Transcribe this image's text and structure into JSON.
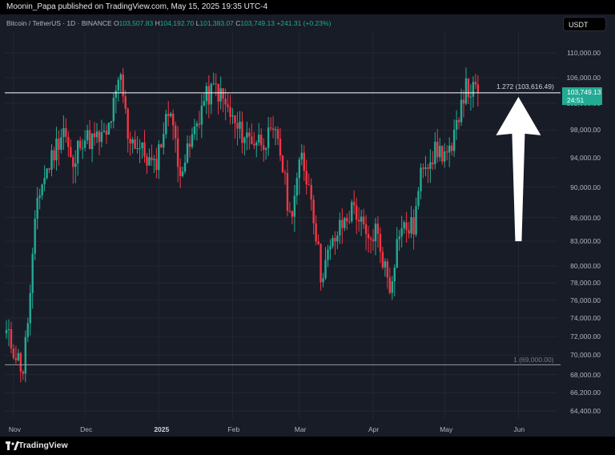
{
  "publisher_line": "Moonin_Papa published on TradingView.com, May 15, 2025 19:35 UTC-4",
  "legend": {
    "symbol": "Bitcoin / TetherUS · 1D · BINANCE",
    "o_label": "O",
    "o": "103,507.83",
    "h_label": "H",
    "h": "104,192.70",
    "l_label": "L",
    "l": "101,383.07",
    "c_label": "C",
    "c": "103,749.13",
    "change": "+241.31 (+0.23%)"
  },
  "currency_button": "USDT",
  "price_tag": {
    "price": "103,749.13",
    "countdown": "24:51"
  },
  "fib_levels": {
    "top_label": "1.272 (103,616.49)",
    "top_value": 103616.49,
    "bottom_label": "1 (69,000.00)",
    "bottom_value": 69000
  },
  "footer_brand": "TradingView",
  "colors": {
    "up": "#22ab94",
    "down": "#f23645",
    "background": "#181c27",
    "grid": "#232734",
    "arrow": "#ffffff"
  },
  "chart_data": {
    "type": "candlestick",
    "symbol": "Bitcoin / TetherUS",
    "timeframe": "1D",
    "exchange": "BINANCE",
    "y_scale": "log",
    "ylim": [
      63000,
      114000
    ],
    "y_ticks": [
      {
        "value": 110000,
        "label": "110,000.00"
      },
      {
        "value": 106000,
        "label": "106,000.00"
      },
      {
        "value": 102000,
        "label": "102,000.00"
      },
      {
        "value": 98000,
        "label": "98,000.00"
      },
      {
        "value": 94000,
        "label": "94,000.00"
      },
      {
        "value": 90000,
        "label": "90,000.00"
      },
      {
        "value": 86000,
        "label": "86,000.00"
      },
      {
        "value": 83000,
        "label": "83,000.00"
      },
      {
        "value": 80000,
        "label": "80,000.00"
      },
      {
        "value": 78000,
        "label": "78,000.00"
      },
      {
        "value": 76000,
        "label": "76,000.00"
      },
      {
        "value": 74000,
        "label": "74,000.00"
      },
      {
        "value": 72000,
        "label": "72,000.00"
      },
      {
        "value": 70000,
        "label": "70,000.00"
      },
      {
        "value": 68000,
        "label": "68,000.00"
      },
      {
        "value": 66200,
        "label": "66,200.00"
      },
      {
        "value": 64400,
        "label": "64,400.00"
      }
    ],
    "x_ticks": [
      {
        "date": "2024-11-01",
        "label": "Nov",
        "bold": false
      },
      {
        "date": "2024-12-01",
        "label": "Dec",
        "bold": false
      },
      {
        "date": "2025-01-01",
        "label": "2025",
        "bold": true
      },
      {
        "date": "2025-02-01",
        "label": "Feb",
        "bold": false
      },
      {
        "date": "2025-03-01",
        "label": "Mar",
        "bold": false
      },
      {
        "date": "2025-04-01",
        "label": "Apr",
        "bold": false
      },
      {
        "date": "2025-05-01",
        "label": "May",
        "bold": false
      },
      {
        "date": "2025-06-01",
        "label": "Jun",
        "bold": false
      }
    ],
    "x_range": [
      "2024-10-29",
      "2025-06-17"
    ],
    "series": [
      {
        "name": "Bitcoin / TetherUS",
        "points": [
          {
            "date": "2024-10-29",
            "close": 72300
          },
          {
            "date": "2024-11-05",
            "close": 68500
          },
          {
            "date": "2024-11-08",
            "close": 76500
          },
          {
            "date": "2024-11-11",
            "close": 88500
          },
          {
            "date": "2024-11-13",
            "close": 90500
          },
          {
            "date": "2024-11-22",
            "close": 98500
          },
          {
            "date": "2024-11-26",
            "close": 92000
          },
          {
            "date": "2024-11-29",
            "close": 97000
          },
          {
            "date": "2024-12-05",
            "close": 96500
          },
          {
            "date": "2024-12-10",
            "close": 97000
          },
          {
            "date": "2024-12-16",
            "close": 106000
          },
          {
            "date": "2024-12-19",
            "close": 97500
          },
          {
            "date": "2024-12-26",
            "close": 94500
          },
          {
            "date": "2024-12-30",
            "close": 92500
          },
          {
            "date": "2025-01-06",
            "close": 102000
          },
          {
            "date": "2025-01-09",
            "close": 92500
          },
          {
            "date": "2025-01-13",
            "close": 94500
          },
          {
            "date": "2025-01-20",
            "close": 102500
          },
          {
            "date": "2025-01-25",
            "close": 104500
          },
          {
            "date": "2025-02-03",
            "close": 98000
          },
          {
            "date": "2025-02-10",
            "close": 96500
          },
          {
            "date": "2025-02-20",
            "close": 97000
          },
          {
            "date": "2025-02-25",
            "close": 86000
          },
          {
            "date": "2025-03-02",
            "close": 94000
          },
          {
            "date": "2025-03-06",
            "close": 89000
          },
          {
            "date": "2025-03-10",
            "close": 79000
          },
          {
            "date": "2025-03-17",
            "close": 84000
          },
          {
            "date": "2025-03-24",
            "close": 87500
          },
          {
            "date": "2025-03-30",
            "close": 82500
          },
          {
            "date": "2025-04-02",
            "close": 84500
          },
          {
            "date": "2025-04-08",
            "close": 77500
          },
          {
            "date": "2025-04-12",
            "close": 84500
          },
          {
            "date": "2025-04-18",
            "close": 84800
          },
          {
            "date": "2025-04-22",
            "close": 93500
          },
          {
            "date": "2025-04-28",
            "close": 95000
          },
          {
            "date": "2025-05-04",
            "close": 94300
          },
          {
            "date": "2025-05-08",
            "close": 103000
          },
          {
            "date": "2025-05-10",
            "close": 104200
          },
          {
            "date": "2025-05-14",
            "close": 103700
          },
          {
            "date": "2025-05-15",
            "close": 103749.13
          }
        ]
      }
    ],
    "horizontal_lines": [
      {
        "value": 103616.49,
        "label": "1.272 (103,616.49)"
      },
      {
        "value": 69000,
        "label": "1 (69,000.00)"
      }
    ],
    "annotations": [
      {
        "type": "arrow",
        "direction": "up",
        "from_date": "2025-06-01",
        "from_value": 83000,
        "to_date": "2025-06-01",
        "to_value": 103000
      }
    ],
    "grid": true,
    "legend_position": "top-left"
  }
}
